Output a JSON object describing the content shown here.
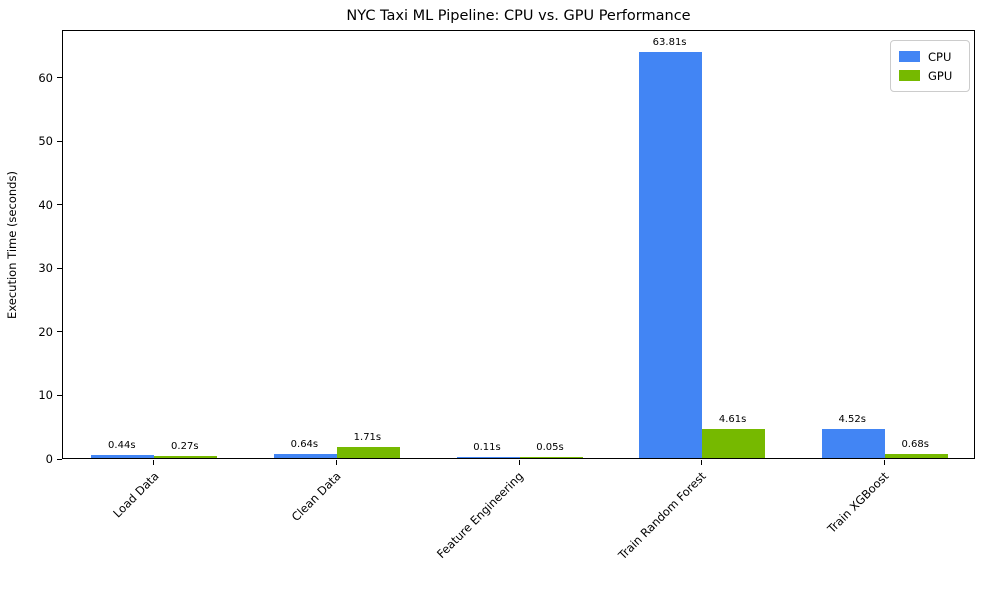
{
  "title": "NYC Taxi ML Pipeline: CPU vs. GPU Performance",
  "chart_data": {
    "type": "bar",
    "categories": [
      "Load Data",
      "Clean Data",
      "Feature Engineering",
      "Train Random Forest",
      "Train XGBoost"
    ],
    "series": [
      {
        "name": "CPU",
        "color": "#4285f4",
        "values": [
          0.44,
          0.64,
          0.11,
          63.81,
          4.52
        ],
        "labels": [
          "0.44s",
          "0.64s",
          "0.11s",
          "63.81s",
          "4.52s"
        ]
      },
      {
        "name": "GPU",
        "color": "#76b900",
        "values": [
          0.27,
          1.71,
          0.05,
          4.61,
          0.68
        ],
        "labels": [
          "0.27s",
          "1.71s",
          "0.05s",
          "4.61s",
          "0.68s"
        ]
      }
    ],
    "xlabel": "",
    "ylabel": "Execution Time (seconds)",
    "yticks": [
      0,
      10,
      20,
      30,
      40,
      50,
      60
    ],
    "ylim": [
      0,
      67.5
    ],
    "grid": false,
    "legend_position": "upper right",
    "bar_label_suffix": "s"
  }
}
